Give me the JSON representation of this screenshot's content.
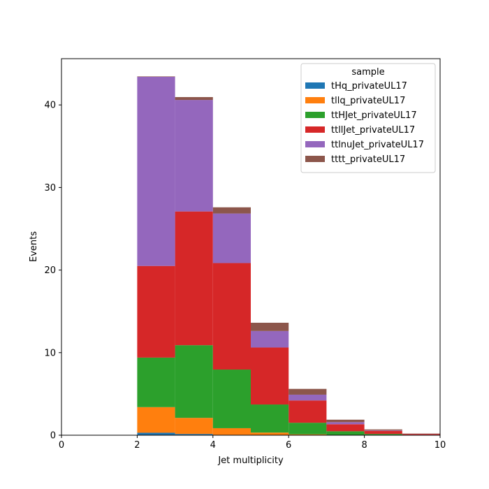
{
  "chart_data": {
    "type": "bar",
    "stacked": true,
    "histogram": true,
    "bin_edges": [
      0,
      1,
      2,
      3,
      4,
      5,
      6,
      7,
      8,
      9,
      10
    ],
    "xlabel": "Jet multiplicity",
    "ylabel": "Events",
    "xlim": [
      0,
      10
    ],
    "ylim": [
      0,
      45.6
    ],
    "x_ticks": [
      0,
      2,
      4,
      6,
      8,
      10
    ],
    "y_ticks": [
      0,
      10,
      20,
      30,
      40
    ],
    "grid": false,
    "legend": {
      "title": "sample",
      "placement": "top-right"
    },
    "series": [
      {
        "name": "tHq_privateUL17",
        "color": "#1f77b4",
        "values": [
          0,
          0,
          0.3,
          0.15,
          0.05,
          0.02,
          0.01,
          0,
          0,
          0
        ]
      },
      {
        "name": "tllq_privateUL17",
        "color": "#ff7f0e",
        "values": [
          0,
          0,
          3.1,
          1.95,
          0.8,
          0.3,
          0.1,
          0.03,
          0.01,
          0
        ]
      },
      {
        "name": "ttHJet_privateUL17",
        "color": "#2ca02c",
        "values": [
          0,
          0,
          6.0,
          8.8,
          7.1,
          3.4,
          1.4,
          0.45,
          0.14,
          0.04
        ]
      },
      {
        "name": "ttllJet_privateUL17",
        "color": "#d62728",
        "values": [
          0,
          0,
          11.1,
          16.2,
          12.9,
          6.9,
          2.7,
          0.85,
          0.38,
          0.1
        ]
      },
      {
        "name": "ttlnuJet_privateUL17",
        "color": "#9467bd",
        "values": [
          0,
          0,
          22.9,
          13.5,
          6.0,
          2.0,
          0.7,
          0.25,
          0.05,
          0.01
        ]
      },
      {
        "name": "tttt_privateUL17",
        "color": "#8c564b",
        "values": [
          0,
          0,
          0.05,
          0.35,
          0.75,
          1.0,
          0.7,
          0.3,
          0.12,
          0.05
        ]
      }
    ]
  }
}
